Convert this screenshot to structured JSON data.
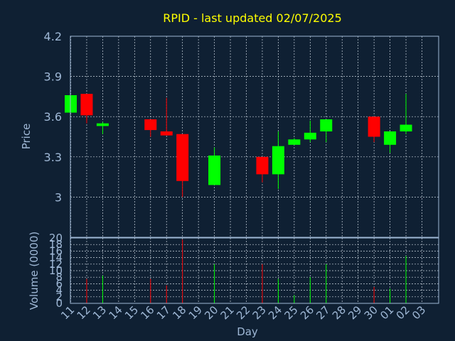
{
  "title": "RPID - last updated 02/07/2025",
  "colors": {
    "background": "#0f2033",
    "up": "#00ff00",
    "down": "#ff0000",
    "title": "#ffff00",
    "axis_text": "#9fb8d6"
  },
  "chart_data": [
    {
      "type": "candlestick",
      "ylabel": "Price",
      "ylim": [
        2.7,
        4.2
      ],
      "yticks": [
        "3",
        "3.3",
        "3.6",
        "3.9",
        "4.2"
      ],
      "ytick_values": [
        3.0,
        3.3,
        3.6,
        3.9,
        4.2
      ],
      "grid": true,
      "candles": [
        {
          "day": "11",
          "open": 3.63,
          "high": 3.76,
          "low": 3.63,
          "close": 3.76
        },
        {
          "day": "12",
          "open": 3.77,
          "high": 3.77,
          "low": 3.55,
          "close": 3.61
        },
        {
          "day": "13",
          "open": 3.53,
          "high": 3.56,
          "low": 3.47,
          "close": 3.55
        },
        {
          "day": "16",
          "open": 3.58,
          "high": 3.58,
          "low": 3.45,
          "close": 3.5
        },
        {
          "day": "17",
          "open": 3.49,
          "high": 3.74,
          "low": 3.46,
          "close": 3.46
        },
        {
          "day": "18",
          "open": 3.47,
          "high": 3.47,
          "low": 3.0,
          "close": 3.12
        },
        {
          "day": "20",
          "open": 3.09,
          "high": 3.37,
          "low": 3.09,
          "close": 3.31
        },
        {
          "day": "23",
          "open": 3.3,
          "high": 3.3,
          "low": 3.11,
          "close": 3.17
        },
        {
          "day": "24",
          "open": 3.17,
          "high": 3.49,
          "low": 3.06,
          "close": 3.38
        },
        {
          "day": "25",
          "open": 3.39,
          "high": 3.44,
          "low": 3.39,
          "close": 3.43
        },
        {
          "day": "26",
          "open": 3.43,
          "high": 3.57,
          "low": 3.41,
          "close": 3.48
        },
        {
          "day": "27",
          "open": 3.49,
          "high": 3.58,
          "low": 3.41,
          "close": 3.58
        },
        {
          "day": "30",
          "open": 3.6,
          "high": 3.6,
          "low": 3.41,
          "close": 3.45
        },
        {
          "day": "01",
          "open": 3.39,
          "high": 3.49,
          "low": 3.33,
          "close": 3.49
        },
        {
          "day": "02",
          "open": 3.49,
          "high": 3.77,
          "low": 3.47,
          "close": 3.54
        }
      ]
    },
    {
      "type": "bar",
      "ylabel": "Volume (0000)",
      "xlabel": "Day",
      "ylim": [
        0,
        20
      ],
      "yticks": [
        "0",
        "2",
        "4",
        "6",
        "8",
        "10",
        "12",
        "14",
        "16",
        "18",
        "20"
      ],
      "ytick_values": [
        0,
        2,
        4,
        6,
        8,
        10,
        12,
        14,
        16,
        18,
        20
      ],
      "categories": [
        "11",
        "12",
        "13",
        "14",
        "15",
        "16",
        "17",
        "18",
        "19",
        "20",
        "21",
        "22",
        "23",
        "24",
        "25",
        "26",
        "27",
        "28",
        "29",
        "30",
        "01",
        "02",
        "03"
      ],
      "volumes": [
        {
          "day": "12",
          "value": 7.5,
          "direction": "down"
        },
        {
          "day": "13",
          "value": 8.5,
          "direction": "up"
        },
        {
          "day": "16",
          "value": 7.5,
          "direction": "down"
        },
        {
          "day": "17",
          "value": 5.5,
          "direction": "down"
        },
        {
          "day": "18",
          "value": 19.5,
          "direction": "down"
        },
        {
          "day": "20",
          "value": 12.0,
          "direction": "up"
        },
        {
          "day": "23",
          "value": 12.0,
          "direction": "down"
        },
        {
          "day": "24",
          "value": 7.5,
          "direction": "up"
        },
        {
          "day": "25",
          "value": 2.5,
          "direction": "up"
        },
        {
          "day": "26",
          "value": 8.0,
          "direction": "up"
        },
        {
          "day": "27",
          "value": 12.0,
          "direction": "up"
        },
        {
          "day": "30",
          "value": 5.0,
          "direction": "down"
        },
        {
          "day": "01",
          "value": 4.5,
          "direction": "up"
        },
        {
          "day": "02",
          "value": 14.5,
          "direction": "up"
        }
      ]
    }
  ]
}
